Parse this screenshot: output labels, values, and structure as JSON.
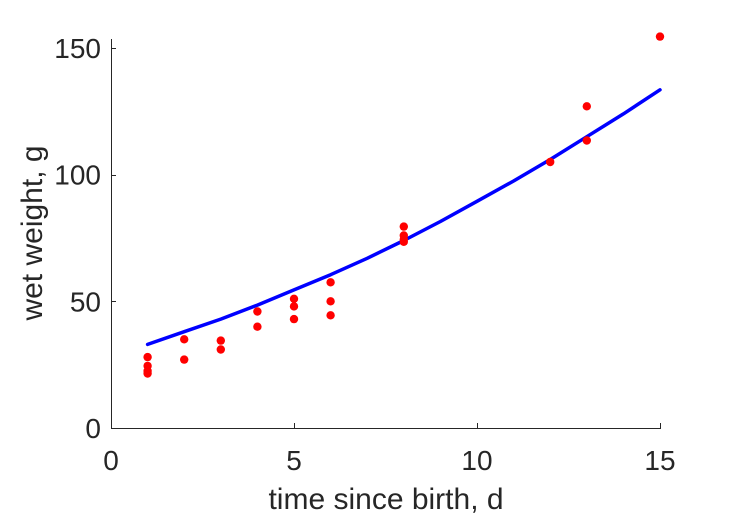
{
  "chart_data": {
    "type": "scatter",
    "xlabel": "time since birth, d",
    "ylabel": "wet weight, g",
    "xlim": [
      0,
      15
    ],
    "ylim": [
      0,
      150
    ],
    "xticks": [
      0,
      5,
      10,
      15
    ],
    "yticks": [
      0,
      50,
      100,
      150
    ],
    "xtick_labels": [
      "0",
      "5",
      "10",
      "15"
    ],
    "ytick_labels": [
      "0",
      "50",
      "100",
      "150"
    ],
    "grid": false,
    "legend": "none",
    "series": [
      {
        "kind": "points",
        "color": "#ff0000",
        "x": [
          1,
          1,
          1,
          1,
          2,
          2,
          3,
          3,
          4,
          4,
          5,
          5,
          5,
          6,
          6,
          6,
          8,
          8,
          8,
          8,
          12,
          13,
          13,
          15
        ],
        "y": [
          28,
          24.5,
          22.5,
          21.5,
          35,
          27,
          34.5,
          31,
          46,
          40,
          51,
          48,
          43,
          57.5,
          50,
          44.5,
          79.5,
          76,
          74.5,
          73.5,
          105,
          127,
          113.5,
          154.5
        ]
      },
      {
        "kind": "line",
        "color": "#0000ff",
        "x": [
          1,
          2,
          3,
          4,
          5,
          6,
          7,
          8,
          9,
          10,
          11,
          12,
          13,
          14,
          15
        ],
        "y": [
          33,
          38,
          43,
          48.5,
          54.5,
          60.5,
          67,
          74,
          81.5,
          89.5,
          97.5,
          106,
          115,
          124,
          133.5
        ]
      }
    ]
  }
}
